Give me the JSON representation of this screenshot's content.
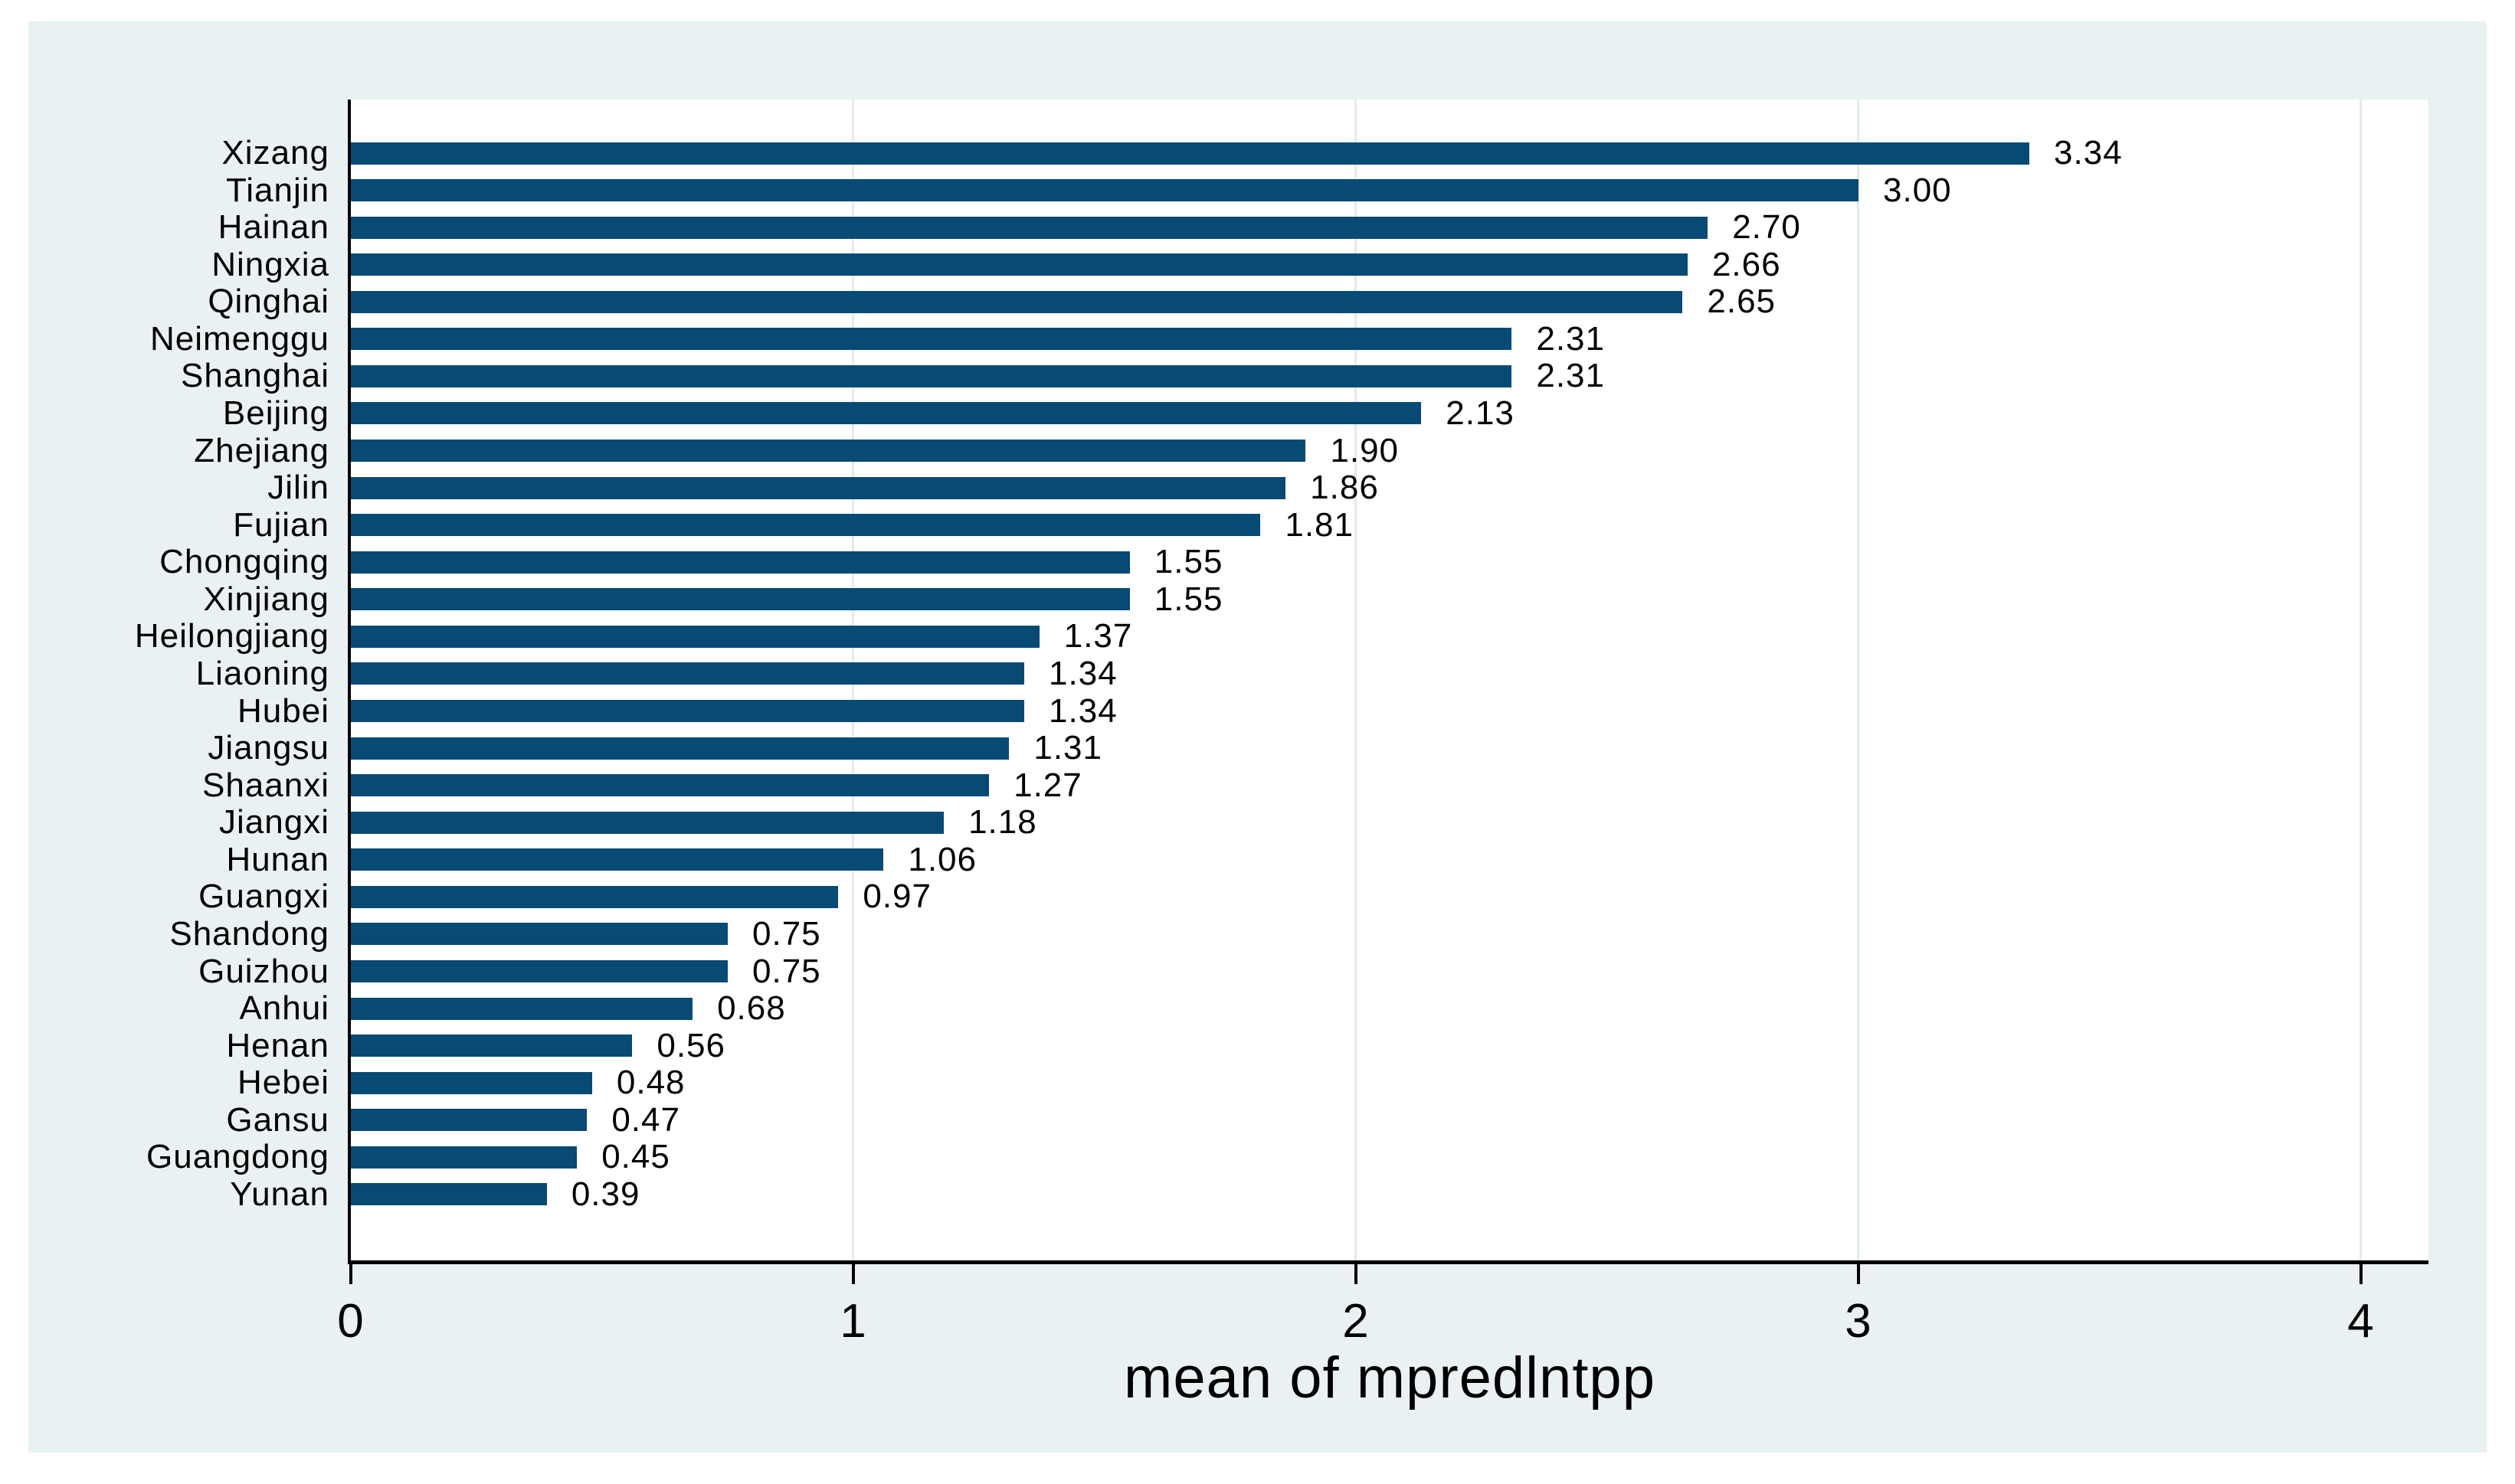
{
  "chart_data": {
    "type": "bar",
    "orientation": "horizontal",
    "title": "",
    "xlabel": "mean of mpredlntpp",
    "ylabel": "",
    "categories": [
      "Xizang",
      "Tianjin",
      "Hainan",
      "Ningxia",
      "Qinghai",
      "Neimenggu",
      "Shanghai",
      "Beijing",
      "Zhejiang",
      "Jilin",
      "Fujian",
      "Chongqing",
      "Xinjiang",
      "Heilongjiang",
      "Liaoning",
      "Hubei",
      "Jiangsu",
      "Shaanxi",
      "Jiangxi",
      "Hunan",
      "Guangxi",
      "Shandong",
      "Guizhou",
      "Anhui",
      "Henan",
      "Hebei",
      "Gansu",
      "Guangdong",
      "Yunan"
    ],
    "values": [
      3.34,
      3.0,
      2.7,
      2.66,
      2.65,
      2.31,
      2.31,
      2.13,
      1.9,
      1.86,
      1.81,
      1.55,
      1.55,
      1.37,
      1.34,
      1.34,
      1.31,
      1.27,
      1.18,
      1.06,
      0.97,
      0.75,
      0.75,
      0.68,
      0.56,
      0.48,
      0.47,
      0.45,
      0.39
    ],
    "value_labels": [
      "3.34",
      "3.00",
      "2.70",
      "2.66",
      "2.65",
      "2.31",
      "2.31",
      "2.13",
      "1.90",
      "1.86",
      "1.81",
      "1.55",
      "1.55",
      "1.37",
      "1.34",
      "1.34",
      "1.31",
      "1.27",
      "1.18",
      "1.06",
      "0.97",
      "0.75",
      "0.75",
      "0.68",
      "0.56",
      "0.48",
      "0.47",
      "0.45",
      "0.39"
    ],
    "xtick_labels": [
      "0",
      "1",
      "2",
      "3",
      "4"
    ],
    "xtick_values": [
      0,
      1,
      2,
      3,
      4
    ],
    "xlim": [
      0,
      4.13
    ],
    "grid": "vertical gridlines at major x ticks",
    "legend_position": "none",
    "colors": {
      "bar": "#074a73",
      "panel_bg": "#e9f1f2",
      "plot_bg": "#ffffff",
      "grid_line": "#dfeced",
      "axis_line": "#000000",
      "text": "#000000"
    }
  }
}
